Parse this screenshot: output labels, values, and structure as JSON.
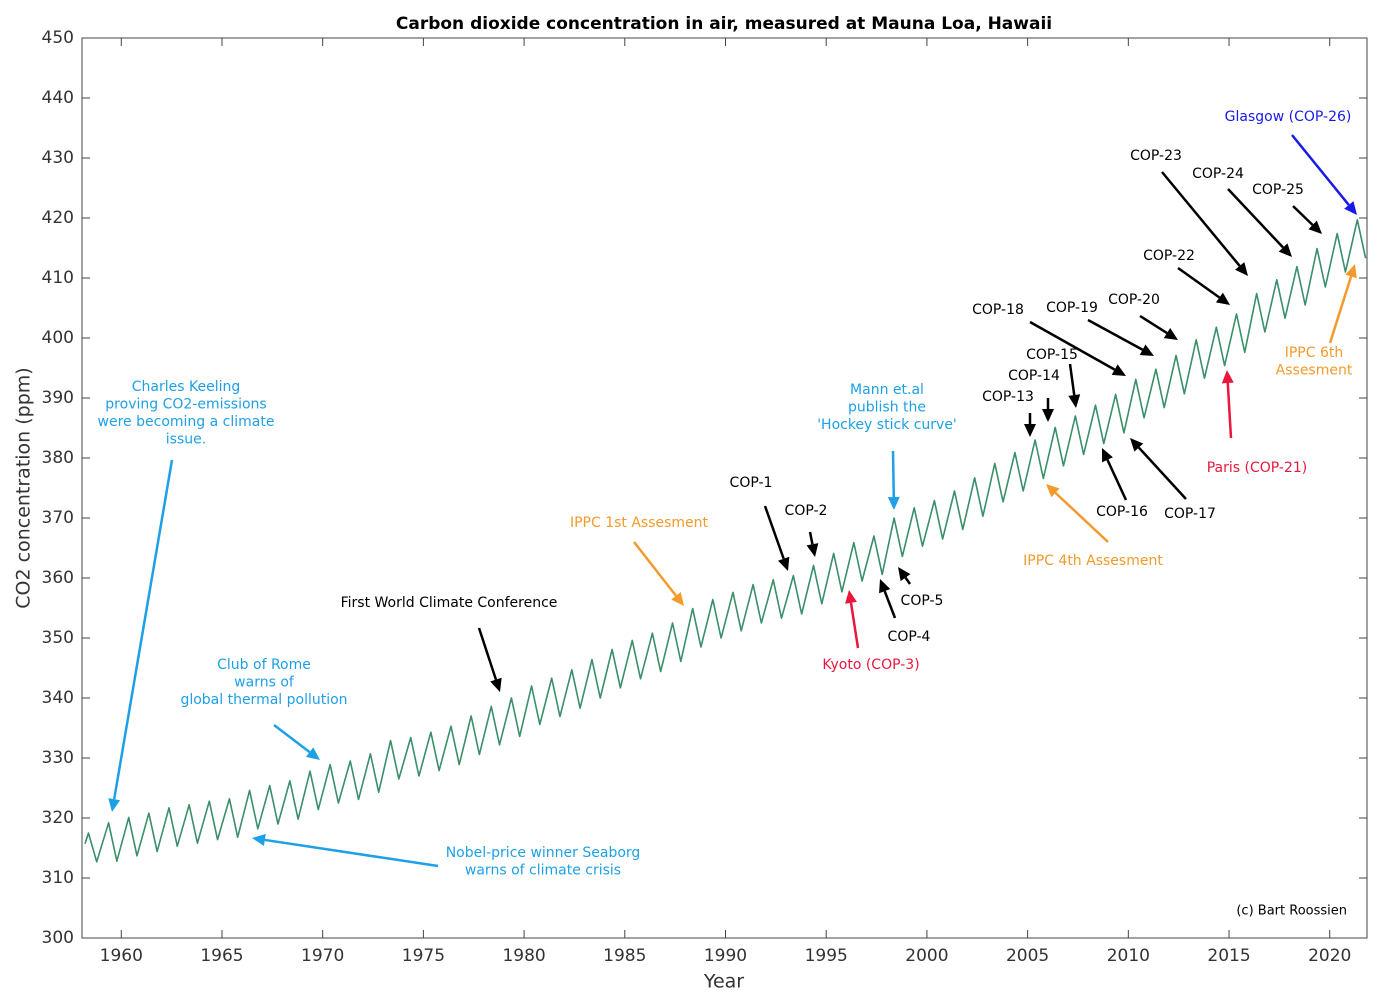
{
  "chart_data": {
    "type": "line",
    "title": "Carbon dioxide concentration in air, measured at Mauna Loa, Hawaii",
    "x_label": "Year",
    "y_label": "CO2 concentration (ppm)",
    "xlim": [
      1958.05,
      2021.85
    ],
    "ylim": [
      300,
      450
    ],
    "xticks": [
      1960,
      1965,
      1970,
      1975,
      1980,
      1985,
      1990,
      1995,
      2000,
      2005,
      2010,
      2015,
      2020
    ],
    "yticks": [
      300,
      310,
      320,
      330,
      340,
      350,
      360,
      370,
      380,
      390,
      400,
      410,
      420,
      430,
      440,
      450
    ],
    "grid": false,
    "credit": "(c) Bart Roossien",
    "series": [
      {
        "color": "#3a8f6a",
        "x": [
          1958.2,
          1958.37,
          1958.78,
          1959.37,
          1959.78,
          1960.37,
          1960.78,
          1961.37,
          1961.78,
          1962.37,
          1962.78,
          1963.37,
          1963.78,
          1964.37,
          1964.78,
          1965.37,
          1965.78,
          1966.37,
          1966.78,
          1967.37,
          1967.78,
          1968.37,
          1968.78,
          1969.37,
          1969.78,
          1970.37,
          1970.78,
          1971.37,
          1971.78,
          1972.37,
          1972.78,
          1973.37,
          1973.78,
          1974.37,
          1974.78,
          1975.37,
          1975.78,
          1976.37,
          1976.78,
          1977.37,
          1977.78,
          1978.37,
          1978.78,
          1979.37,
          1979.78,
          1980.37,
          1980.78,
          1981.37,
          1981.78,
          1982.37,
          1982.78,
          1983.37,
          1983.78,
          1984.37,
          1984.78,
          1985.37,
          1985.78,
          1986.37,
          1986.78,
          1987.37,
          1987.78,
          1988.37,
          1988.78,
          1989.37,
          1989.78,
          1990.37,
          1990.78,
          1991.37,
          1991.78,
          1992.37,
          1992.78,
          1993.37,
          1993.78,
          1994.37,
          1994.78,
          1995.37,
          1995.78,
          1996.37,
          1996.78,
          1997.37,
          1997.78,
          1998.37,
          1998.78,
          1999.37,
          1999.78,
          2000.37,
          2000.78,
          2001.37,
          2001.78,
          2002.37,
          2002.78,
          2003.37,
          2003.78,
          2004.37,
          2004.78,
          2005.37,
          2005.78,
          2006.37,
          2006.78,
          2007.37,
          2007.78,
          2008.37,
          2008.78,
          2009.37,
          2009.78,
          2010.37,
          2010.78,
          2011.37,
          2011.78,
          2012.37,
          2012.78,
          2013.37,
          2013.78,
          2014.37,
          2014.78,
          2015.37,
          2015.78,
          2016.37,
          2016.78,
          2017.37,
          2017.78,
          2018.37,
          2018.78,
          2019.37,
          2019.78,
          2020.37,
          2020.78,
          2021.37,
          2021.78
        ],
        "values": [
          315.7,
          317.5,
          312.7,
          319.2,
          312.8,
          320.1,
          313.7,
          320.8,
          314.4,
          321.7,
          315.3,
          322.2,
          315.8,
          322.8,
          316.4,
          323.2,
          316.8,
          324.6,
          318.2,
          325.4,
          319.0,
          326.2,
          319.8,
          327.8,
          321.4,
          328.9,
          322.5,
          329.5,
          323.1,
          330.7,
          324.3,
          332.9,
          326.5,
          333.4,
          327.0,
          334.3,
          327.9,
          335.3,
          328.9,
          337.0,
          330.6,
          338.6,
          332.2,
          340.0,
          333.6,
          342.0,
          335.6,
          343.3,
          336.9,
          344.7,
          338.3,
          346.4,
          340.0,
          348.1,
          341.7,
          349.6,
          343.2,
          350.8,
          344.4,
          352.5,
          346.1,
          354.9,
          348.5,
          356.4,
          350.0,
          357.6,
          351.2,
          358.9,
          352.5,
          359.7,
          353.3,
          360.4,
          354.0,
          362.1,
          355.7,
          364.1,
          357.7,
          365.9,
          359.5,
          367.0,
          360.6,
          370.0,
          363.6,
          371.7,
          365.3,
          372.9,
          366.5,
          374.5,
          368.1,
          376.7,
          370.3,
          379.1,
          372.7,
          380.9,
          374.5,
          383.0,
          376.6,
          385.1,
          378.7,
          387.0,
          380.6,
          388.8,
          382.4,
          390.6,
          384.2,
          393.1,
          386.7,
          394.8,
          388.4,
          397.1,
          390.7,
          399.7,
          393.3,
          401.8,
          395.4,
          404.0,
          397.6,
          407.4,
          401.0,
          409.7,
          403.3,
          411.9,
          405.5,
          414.9,
          408.5,
          417.4,
          411.0,
          419.7,
          413.3
        ]
      }
    ],
    "annotations": [
      {
        "lines": [
          "Charles Keeling",
          "proving CO2-emissions",
          "were becoming a climate",
          "issue."
        ],
        "color": "#1ea0e6"
      },
      {
        "lines": [
          "Club of Rome",
          "warns of",
          "global thermal pollution"
        ],
        "color": "#1ea0e6"
      },
      {
        "lines": [
          "Nobel-price winner Seaborg",
          "warns of climate crisis"
        ],
        "color": "#1ea0e6"
      },
      {
        "lines": [
          "First World Climate Conference"
        ],
        "color": "#000000"
      },
      {
        "lines": [
          "IPPC 1st Assesment"
        ],
        "color": "#f39a2a"
      },
      {
        "lines": [
          "COP-1"
        ],
        "color": "#000000"
      },
      {
        "lines": [
          "COP-2"
        ],
        "color": "#000000"
      },
      {
        "lines": [
          "Kyoto (COP-3)"
        ],
        "color": "#e8173c"
      },
      {
        "lines": [
          "COP-4"
        ],
        "color": "#000000"
      },
      {
        "lines": [
          "COP-5"
        ],
        "color": "#000000"
      },
      {
        "lines": [
          "Mann et.al",
          "publish the",
          "'Hockey stick curve'"
        ],
        "color": "#1ea0e6"
      },
      {
        "lines": [
          "COP-13"
        ],
        "color": "#000000"
      },
      {
        "lines": [
          "COP-14"
        ],
        "color": "#000000"
      },
      {
        "lines": [
          "COP-15"
        ],
        "color": "#000000"
      },
      {
        "lines": [
          "IPPC 4th Assesment"
        ],
        "color": "#f39a2a"
      },
      {
        "lines": [
          "COP-16"
        ],
        "color": "#000000"
      },
      {
        "lines": [
          "COP-17"
        ],
        "color": "#000000"
      },
      {
        "lines": [
          "COP-18"
        ],
        "color": "#000000"
      },
      {
        "lines": [
          "COP-19"
        ],
        "color": "#000000"
      },
      {
        "lines": [
          "COP-20"
        ],
        "color": "#000000"
      },
      {
        "lines": [
          "COP-22"
        ],
        "color": "#000000"
      },
      {
        "lines": [
          "Paris (COP-21)"
        ],
        "color": "#e8173c"
      },
      {
        "lines": [
          "COP-23"
        ],
        "color": "#000000"
      },
      {
        "lines": [
          "COP-24"
        ],
        "color": "#000000"
      },
      {
        "lines": [
          "COP-25"
        ],
        "color": "#000000"
      },
      {
        "lines": [
          "Glasgow (COP-26)"
        ],
        "color": "#1a1ae8"
      },
      {
        "lines": [
          "IPPC 6th",
          "Assesment"
        ],
        "color": "#f39a2a"
      }
    ]
  }
}
